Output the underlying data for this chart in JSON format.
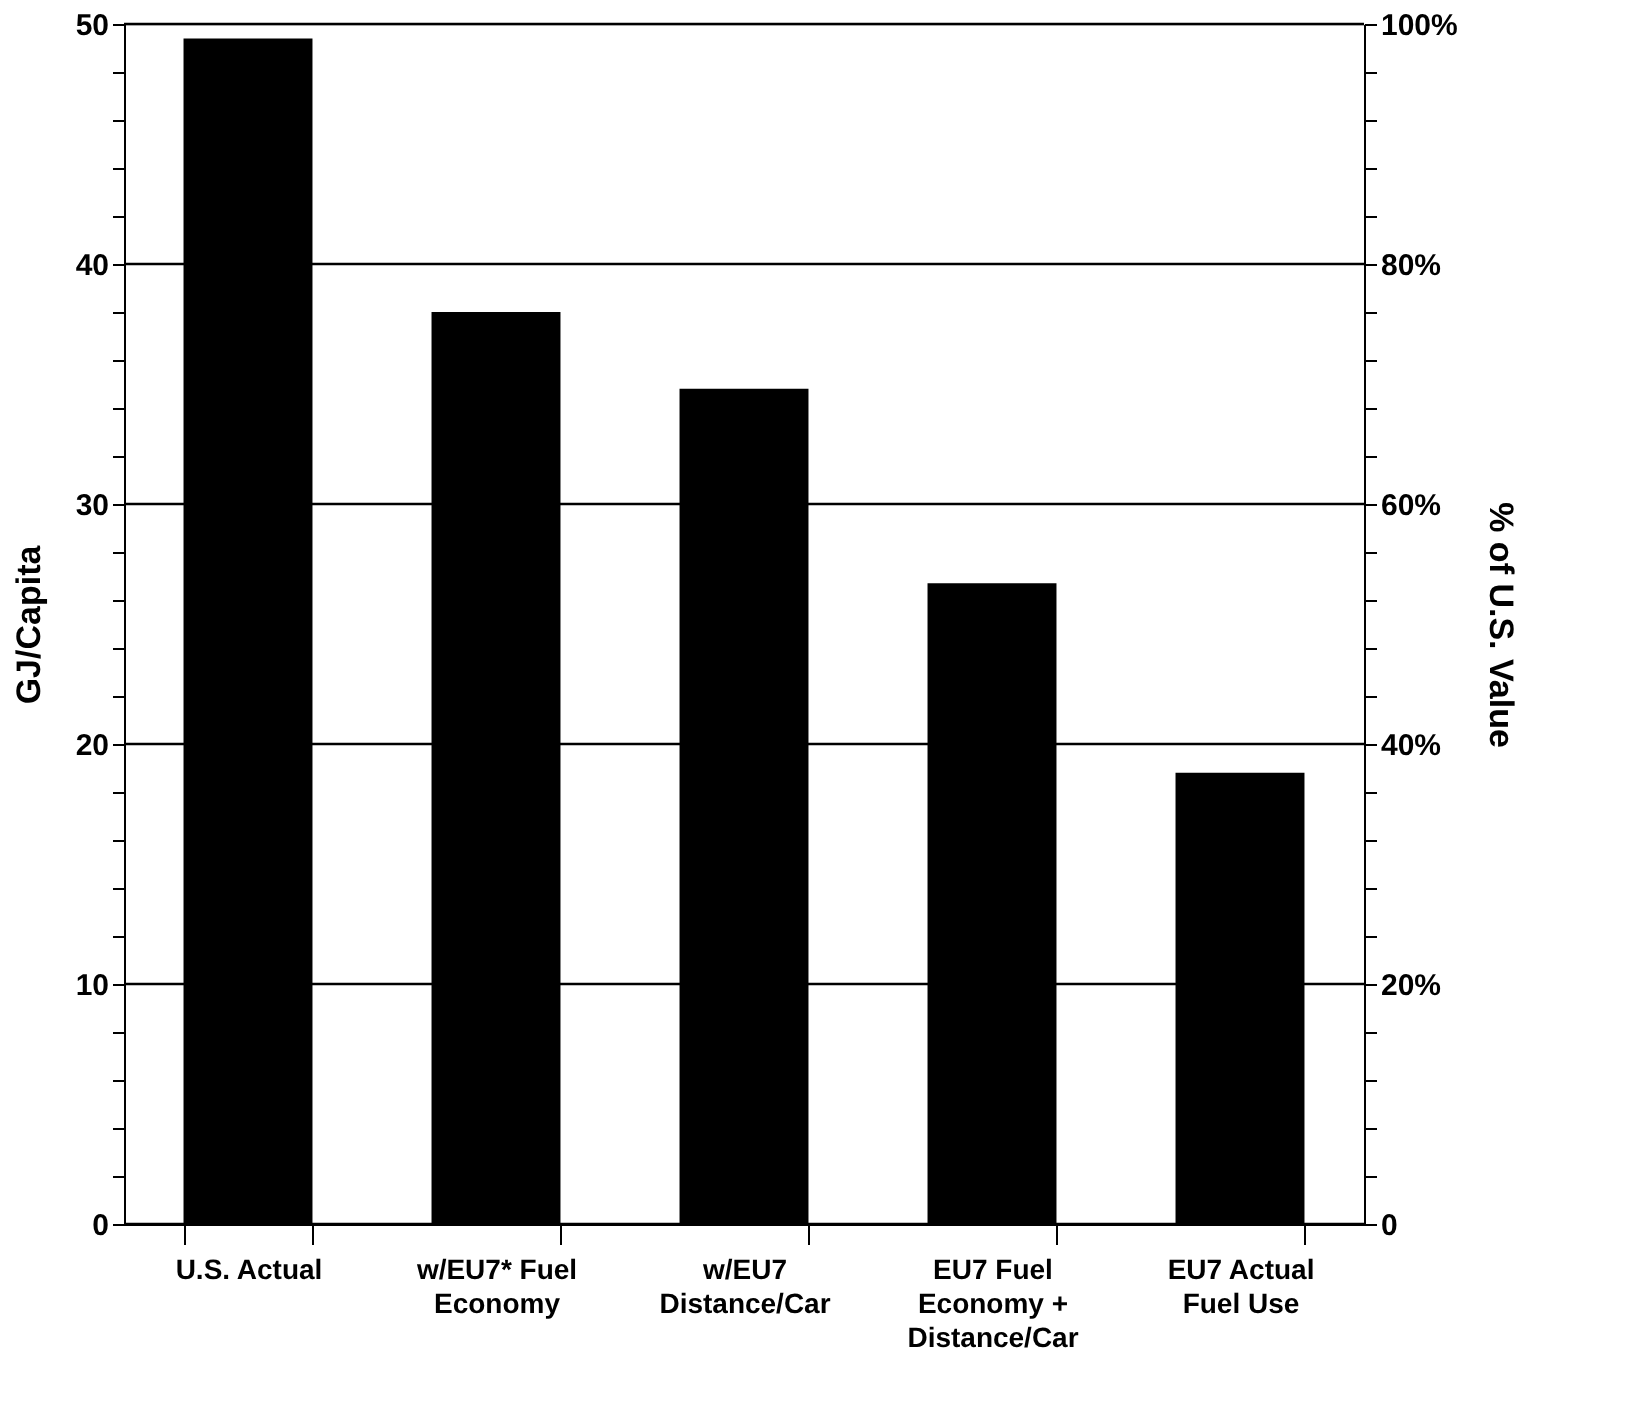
{
  "chart_data": {
    "type": "bar",
    "categories": [
      "U.S. Actual",
      "w/EU7* Fuel\nEconomy",
      "w/EU7\nDistance/Car",
      "EU7 Fuel\nEconomy +\nDistance/Car",
      "EU7 Actual\nFuel Use"
    ],
    "values": [
      49.4,
      38.0,
      34.8,
      26.7,
      18.8
    ],
    "color": "#000000",
    "ylabel": "GJ/Capita",
    "y2label": "% of U.S. Value",
    "ylim": [
      0,
      50
    ],
    "yticks": [
      0,
      {
        "value": 2,
        "label": null
      },
      {
        "value": 4,
        "label": null
      },
      {
        "value": 6,
        "label": null
      },
      {
        "value": 8,
        "label": null
      },
      10,
      {
        "value": 12,
        "label": null
      },
      {
        "value": 14,
        "label": null
      },
      {
        "value": 16,
        "label": null
      },
      {
        "value": 18,
        "label": null
      },
      20,
      {
        "value": 22,
        "label": null
      },
      {
        "value": 24,
        "label": null
      },
      {
        "value": 26,
        "label": null
      },
      {
        "value": 28,
        "label": null
      },
      30,
      {
        "value": 32,
        "label": null
      },
      {
        "value": 34,
        "label": null
      },
      {
        "value": 36,
        "label": null
      },
      {
        "value": 38,
        "label": null
      },
      40,
      {
        "value": 42,
        "label": null
      },
      {
        "value": 44,
        "label": null
      },
      {
        "value": 46,
        "label": null
      },
      {
        "value": 48,
        "label": null
      },
      50
    ],
    "y2lim": [
      0,
      100
    ],
    "y2ticks": [
      0,
      {
        "value": 4,
        "label": null
      },
      {
        "value": 8,
        "label": null
      },
      {
        "value": 12,
        "label": null
      },
      {
        "value": 16,
        "label": null
      },
      {
        "value": 20,
        "label": "20%"
      },
      {
        "value": 24,
        "label": null
      },
      {
        "value": 28,
        "label": null
      },
      {
        "value": 32,
        "label": null
      },
      {
        "value": 36,
        "label": null
      },
      {
        "value": 40,
        "label": "40%"
      },
      {
        "value": 44,
        "label": null
      },
      {
        "value": 48,
        "label": null
      },
      {
        "value": 52,
        "label": null
      },
      {
        "value": 56,
        "label": null
      },
      {
        "value": 60,
        "label": "60%"
      },
      {
        "value": 64,
        "label": null
      },
      {
        "value": 68,
        "label": null
      },
      {
        "value": 72,
        "label": null
      },
      {
        "value": 76,
        "label": null
      },
      {
        "value": 80,
        "label": "80%"
      },
      {
        "value": 84,
        "label": null
      },
      {
        "value": 88,
        "label": null
      },
      {
        "value": 92,
        "label": null
      },
      {
        "value": 96,
        "label": null
      },
      {
        "value": 100,
        "label": "100%"
      }
    ],
    "grid": "y"
  }
}
